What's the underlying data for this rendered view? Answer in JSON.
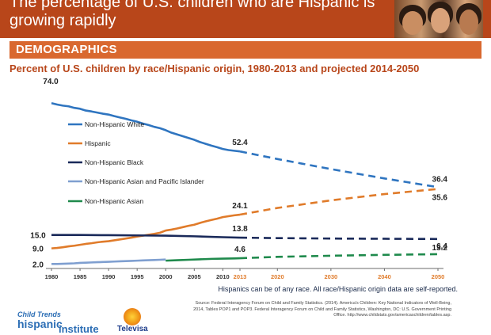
{
  "header": {
    "title": "The percentage of U.S. children who are Hispanic is growing rapidly"
  },
  "section": {
    "label": "DEMOGRAPHICS"
  },
  "note": "Hispanics can be of any race. All race/Hispanic origin data are self-reported.",
  "source": "Source: Federal Interagency Forum on Child and Family Statistics. (2014). America's Children: Key National Indicators of Well-Being, 2014, Tables POP1 and POP3. Federal Interagency Forum on Child and Family Statistics, Washington, DC: U.S. Government Printing Office. http://www.childstats.gov/americaschildren/tables.asp.",
  "logos": {
    "child_trends_line1": "Child Trends",
    "child_trends_line2": "hispanic",
    "child_trends_line3": "institute",
    "televisa": "Televisa"
  },
  "chart_data": {
    "type": "line",
    "title": "Percent of U.S. children by race/Hispanic origin, 1980-2013 and projected 2014-2050",
    "xlabel": "",
    "ylabel": "",
    "x_ticks": [
      1980,
      1985,
      1990,
      1995,
      2000,
      2005,
      2010,
      2013,
      2020,
      2030,
      2040,
      2050
    ],
    "highlight_tick": 2013,
    "ylim": [
      0,
      78
    ],
    "grid": false,
    "legend_position": "left",
    "series": [
      {
        "name": "Non-Hispanic White",
        "color": "#2f75c0",
        "observed": [
          [
            1980,
            74.0
          ],
          [
            1981,
            73.4
          ],
          [
            1982,
            72.9
          ],
          [
            1983,
            72.6
          ],
          [
            1984,
            71.9
          ],
          [
            1985,
            71.5
          ],
          [
            1986,
            70.7
          ],
          [
            1987,
            70.3
          ],
          [
            1988,
            69.8
          ],
          [
            1989,
            69.3
          ],
          [
            1990,
            68.9
          ],
          [
            1991,
            68.2
          ],
          [
            1992,
            67.6
          ],
          [
            1993,
            67.0
          ],
          [
            1994,
            66.3
          ],
          [
            1995,
            65.7
          ],
          [
            1996,
            64.9
          ],
          [
            1997,
            64.2
          ],
          [
            1998,
            63.4
          ],
          [
            1999,
            62.8
          ],
          [
            2000,
            61.9
          ],
          [
            2001,
            60.8
          ],
          [
            2002,
            60.0
          ],
          [
            2003,
            59.2
          ],
          [
            2004,
            58.4
          ],
          [
            2005,
            57.6
          ],
          [
            2006,
            56.6
          ],
          [
            2007,
            55.8
          ],
          [
            2008,
            55.0
          ],
          [
            2009,
            54.3
          ],
          [
            2010,
            53.5
          ],
          [
            2011,
            53.0
          ],
          [
            2012,
            52.7
          ],
          [
            2013,
            52.4
          ]
        ],
        "projected": [
          [
            2013,
            52.4
          ],
          [
            2020,
            49.0
          ],
          [
            2030,
            44.5
          ],
          [
            2040,
            40.3
          ],
          [
            2050,
            36.4
          ]
        ]
      },
      {
        "name": "Hispanic",
        "color": "#e07b2a",
        "observed": [
          [
            1980,
            9.0
          ],
          [
            1981,
            9.2
          ],
          [
            1982,
            9.5
          ],
          [
            1983,
            9.9
          ],
          [
            1984,
            10.2
          ],
          [
            1985,
            10.6
          ],
          [
            1986,
            11.0
          ],
          [
            1987,
            11.3
          ],
          [
            1988,
            11.7
          ],
          [
            1989,
            12.0
          ],
          [
            1990,
            12.2
          ],
          [
            1991,
            12.6
          ],
          [
            1992,
            13.0
          ],
          [
            1993,
            13.4
          ],
          [
            1994,
            13.8
          ],
          [
            1995,
            14.3
          ],
          [
            1996,
            14.7
          ],
          [
            1997,
            15.1
          ],
          [
            1998,
            15.5
          ],
          [
            1999,
            16.0
          ],
          [
            2000,
            17.0
          ],
          [
            2001,
            17.4
          ],
          [
            2002,
            17.9
          ],
          [
            2003,
            18.5
          ],
          [
            2004,
            19.1
          ],
          [
            2005,
            19.6
          ],
          [
            2006,
            20.4
          ],
          [
            2007,
            21.1
          ],
          [
            2008,
            21.7
          ],
          [
            2009,
            22.3
          ],
          [
            2010,
            23.0
          ],
          [
            2011,
            23.4
          ],
          [
            2012,
            23.8
          ],
          [
            2013,
            24.1
          ]
        ],
        "projected": [
          [
            2013,
            24.1
          ],
          [
            2020,
            27.1
          ],
          [
            2030,
            30.5
          ],
          [
            2040,
            33.3
          ],
          [
            2050,
            35.6
          ]
        ]
      },
      {
        "name": "Non-Hispanic Black",
        "color": "#1a2a5a",
        "observed": [
          [
            1980,
            15.0
          ],
          [
            1985,
            15.0
          ],
          [
            1990,
            14.9
          ],
          [
            1995,
            14.8
          ],
          [
            2000,
            14.7
          ],
          [
            2005,
            14.4
          ],
          [
            2010,
            14.0
          ],
          [
            2013,
            13.8
          ]
        ],
        "projected": [
          [
            2013,
            13.8
          ],
          [
            2020,
            13.6
          ],
          [
            2030,
            13.4
          ],
          [
            2040,
            13.3
          ],
          [
            2050,
            13.2
          ]
        ]
      },
      {
        "name": "Non-Hispanic Asian and Pacific Islander",
        "color": "#7f9fd0",
        "observed": [
          [
            1980,
            2.0
          ],
          [
            1981,
            2.0
          ],
          [
            1982,
            2.1
          ],
          [
            1983,
            2.2
          ],
          [
            1984,
            2.3
          ],
          [
            1985,
            2.5
          ],
          [
            1986,
            2.6
          ],
          [
            1987,
            2.7
          ],
          [
            1988,
            2.8
          ],
          [
            1989,
            2.9
          ],
          [
            1990,
            3.0
          ],
          [
            1991,
            3.1
          ],
          [
            1992,
            3.2
          ],
          [
            1993,
            3.3
          ],
          [
            1994,
            3.4
          ],
          [
            1995,
            3.5
          ],
          [
            1996,
            3.6
          ],
          [
            1997,
            3.7
          ],
          [
            1998,
            3.8
          ],
          [
            1999,
            3.9
          ],
          [
            2000,
            4.0
          ]
        ],
        "projected": []
      },
      {
        "name": "Non-Hispanic Asian",
        "color": "#1f8a4c",
        "observed": [
          [
            2000,
            3.5
          ],
          [
            2002,
            3.7
          ],
          [
            2004,
            3.9
          ],
          [
            2006,
            4.1
          ],
          [
            2008,
            4.3
          ],
          [
            2010,
            4.4
          ],
          [
            2012,
            4.5
          ],
          [
            2013,
            4.6
          ]
        ],
        "projected": [
          [
            2013,
            4.6
          ],
          [
            2020,
            5.2
          ],
          [
            2030,
            5.7
          ],
          [
            2040,
            6.1
          ],
          [
            2050,
            6.4
          ]
        ]
      }
    ],
    "data_labels": [
      {
        "series": 0,
        "year": 1980,
        "value": "74.0"
      },
      {
        "series": 0,
        "year": 2013,
        "value": "52.4"
      },
      {
        "series": 0,
        "year": 2050,
        "value": "36.4"
      },
      {
        "series": 1,
        "year": 1980,
        "value": "9.0"
      },
      {
        "series": 1,
        "year": 2013,
        "value": "24.1"
      },
      {
        "series": 1,
        "year": 2050,
        "value": "35.6"
      },
      {
        "series": 2,
        "year": 1980,
        "value": "15.0"
      },
      {
        "series": 2,
        "year": 2013,
        "value": "13.8"
      },
      {
        "series": 2,
        "year": 2050,
        "value": "13.2"
      },
      {
        "series": 3,
        "year": 1980,
        "value": "2.0"
      },
      {
        "series": 4,
        "year": 2013,
        "value": "4.6"
      },
      {
        "series": 4,
        "year": 2050,
        "value": "6.4"
      }
    ]
  }
}
